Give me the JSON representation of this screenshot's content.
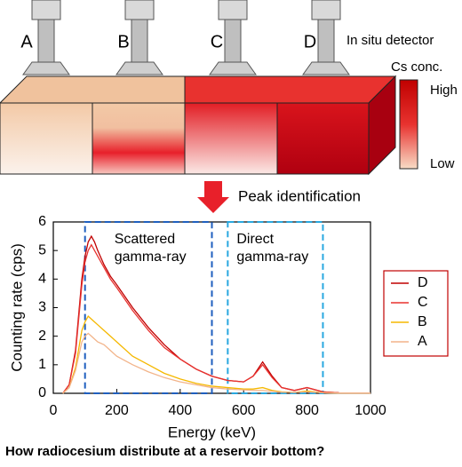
{
  "diagram": {
    "sites": [
      {
        "label": "A",
        "color": "#f2b48a"
      },
      {
        "label": "B",
        "color": "#f5b800"
      },
      {
        "label": "C",
        "color": "#e8322f"
      },
      {
        "label": "D",
        "color": "#c00000"
      }
    ],
    "detector_label": "In situ detector",
    "scale_title": "Cs conc.",
    "scale_high": "High",
    "scale_low": "Low",
    "step": "Peak identification"
  },
  "chart_data": {
    "type": "line",
    "x_label": "Energy (keV)",
    "y_label": "Counting rate (cps)",
    "xlim": [
      0,
      1000
    ],
    "xticks": [
      0,
      200,
      400,
      600,
      800,
      1000
    ],
    "ylim": [
      0,
      6
    ],
    "yticks": [
      0,
      1,
      2,
      3,
      4,
      5,
      6
    ],
    "legend": "right",
    "regions": [
      {
        "lines": [
          "Scattered",
          "gamma-ray"
        ],
        "x0": 100,
        "x1": 500,
        "color": "#1f5fbf"
      },
      {
        "lines": [
          "Direct",
          "gamma-ray"
        ],
        "x0": 550,
        "x1": 850,
        "color": "#29a8e0"
      }
    ],
    "x": [
      30,
      50,
      70,
      90,
      100,
      110,
      120,
      130,
      140,
      160,
      180,
      200,
      250,
      300,
      350,
      400,
      450,
      500,
      550,
      600,
      630,
      660,
      690,
      720,
      760,
      800,
      850,
      900,
      950,
      1000
    ],
    "series": [
      {
        "name": "D",
        "color": "#c00000",
        "values": [
          0,
          0.3,
          1.5,
          4.0,
          4.8,
          5.3,
          5.5,
          5.3,
          5.0,
          4.5,
          4.1,
          3.8,
          3.0,
          2.3,
          1.7,
          1.2,
          0.85,
          0.6,
          0.45,
          0.4,
          0.6,
          1.1,
          0.6,
          0.2,
          0.1,
          0.2,
          0.05,
          0.02,
          0.01,
          0.01
        ]
      },
      {
        "name": "C",
        "color": "#e8322f",
        "values": [
          0,
          0.3,
          1.4,
          3.8,
          4.6,
          5.0,
          5.2,
          5.0,
          4.8,
          4.4,
          4.0,
          3.7,
          2.9,
          2.2,
          1.6,
          1.2,
          0.85,
          0.6,
          0.45,
          0.4,
          0.6,
          1.0,
          0.55,
          0.2,
          0.1,
          0.2,
          0.05,
          0.02,
          0.01,
          0.01
        ]
      },
      {
        "name": "B",
        "color": "#f5b800",
        "values": [
          0,
          0.2,
          0.9,
          2.2,
          2.5,
          2.7,
          2.6,
          2.5,
          2.4,
          2.2,
          2.0,
          1.8,
          1.3,
          1.0,
          0.7,
          0.5,
          0.35,
          0.25,
          0.2,
          0.15,
          0.15,
          0.2,
          0.1,
          0.05,
          0.03,
          0.08,
          0.02,
          0.01,
          0.01,
          0.01
        ]
      },
      {
        "name": "A",
        "color": "#f2b48a",
        "values": [
          0,
          0.2,
          0.8,
          1.8,
          2.0,
          2.1,
          2.0,
          1.9,
          1.8,
          1.7,
          1.5,
          1.3,
          1.0,
          0.75,
          0.55,
          0.4,
          0.3,
          0.2,
          0.15,
          0.12,
          0.1,
          0.1,
          0.07,
          0.04,
          0.03,
          0.05,
          0.02,
          0.01,
          0.01,
          0.01
        ]
      }
    ]
  },
  "caption": "How radiocesium distribute at a reservoir bottom?"
}
